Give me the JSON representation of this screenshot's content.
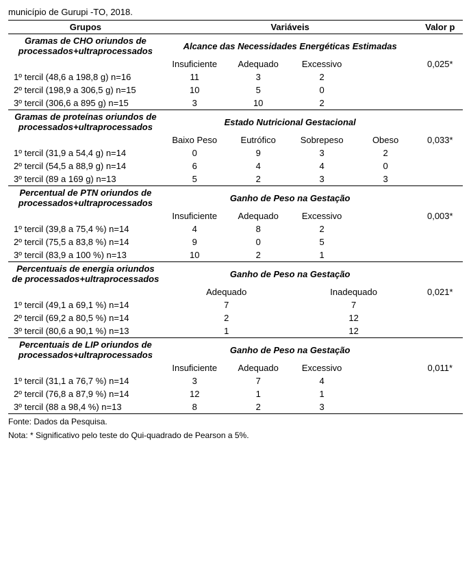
{
  "caption": "município de Gurupi -TO, 2018.",
  "header": {
    "grupos": "Grupos",
    "variaveis": "Variáveis",
    "valorp": "Valor p"
  },
  "sections": [
    {
      "group_title": "Gramas de CHO oriundos de processados+ultraprocessados",
      "var_title": "Alcance das Necessidades Energéticas Estimadas",
      "ncols": 3,
      "col_labels": [
        "Insuficiente",
        "Adequado",
        "Excessivo"
      ],
      "pvalue": "0,025*",
      "rows": [
        {
          "label": "1º tercil (48,6 a 198,8 g) n=16",
          "vals": [
            "11",
            "3",
            "2"
          ]
        },
        {
          "label": "2º tercil (198,9 a 306,5 g) n=15",
          "vals": [
            "10",
            "5",
            "0"
          ]
        },
        {
          "label": "3º tercil (306,6 a 895 g) n=15",
          "vals": [
            "3",
            "10",
            "2"
          ]
        }
      ]
    },
    {
      "group_title": "Gramas de proteínas oriundos de processados+ultraprocessados",
      "var_title": "Estado Nutricional Gestacional",
      "ncols": 4,
      "col_labels": [
        "Baixo Peso",
        "Eutrófico",
        "Sobrepeso",
        "Obeso"
      ],
      "pvalue": "0,033*",
      "rows": [
        {
          "label": "1º tercil (31,9 a 54,4 g) n=14",
          "vals": [
            "0",
            "9",
            "3",
            "2"
          ]
        },
        {
          "label": "2º tercil (54,5 a 88,9 g) n=14",
          "vals": [
            "6",
            "4",
            "4",
            "0"
          ]
        },
        {
          "label": "3º tercil (89 a 169 g) n=13",
          "vals": [
            "5",
            "2",
            "3",
            "3"
          ]
        }
      ]
    },
    {
      "group_title": "Percentual de PTN oriundos de processados+ultraprocessados",
      "var_title": "Ganho de Peso na Gestação",
      "ncols": 3,
      "col_labels": [
        "Insuficiente",
        "Adequado",
        "Excessivo"
      ],
      "pvalue": "0,003*",
      "rows": [
        {
          "label": "1º tercil (39,8 a 75,4 %) n=14",
          "vals": [
            "4",
            "8",
            "2"
          ]
        },
        {
          "label": "2º tercil (75,5 a 83,8 %) n=14",
          "vals": [
            "9",
            "0",
            "5"
          ]
        },
        {
          "label": "3º tercil (83,9 a 100 %) n=13",
          "vals": [
            "10",
            "2",
            "1"
          ]
        }
      ]
    },
    {
      "group_title": "Percentuais de energia oriundos de processados+ultraprocessados",
      "var_title": "Ganho de Peso na Gestação",
      "ncols": 2,
      "col_labels": [
        "Adequado",
        "Inadequado"
      ],
      "pvalue": "0,021*",
      "rows": [
        {
          "label": "1º tercil (49,1 a 69,1 %) n=14",
          "vals": [
            "7",
            "7"
          ]
        },
        {
          "label": "2º tercil (69,2 a 80,5 %) n=14",
          "vals": [
            "2",
            "12"
          ]
        },
        {
          "label": "3º tercil (80,6 a 90,1 %) n=13",
          "vals": [
            "1",
            "12"
          ]
        }
      ]
    },
    {
      "group_title": "Percentuais de LIP oriundos de processados+ultraprocessados",
      "var_title": "Ganho de Peso na Gestação",
      "ncols": 3,
      "col_labels": [
        "Insuficiente",
        "Adequado",
        "Excessivo"
      ],
      "pvalue": "0,011*",
      "rows": [
        {
          "label": "1º tercil (31,1 a 76,7 %) n=14",
          "vals": [
            "3",
            "7",
            "4"
          ]
        },
        {
          "label": "2º tercil (76,8 a 87,9 %) n=14",
          "vals": [
            "12",
            "1",
            "1"
          ]
        },
        {
          "label": "3º tercil (88 a 98,4 %) n=13",
          "vals": [
            "8",
            "2",
            "3"
          ]
        }
      ]
    }
  ],
  "footnote1": "Fonte: Dados da Pesquisa.",
  "footnote2": "Nota: * Significativo pelo teste do Qui-quadrado de Pearson a 5%.",
  "style": {
    "font_size_body": 13,
    "font_size_footnote": 12,
    "border_color": "#000000",
    "background": "#ffffff",
    "text_color": "#000000"
  }
}
